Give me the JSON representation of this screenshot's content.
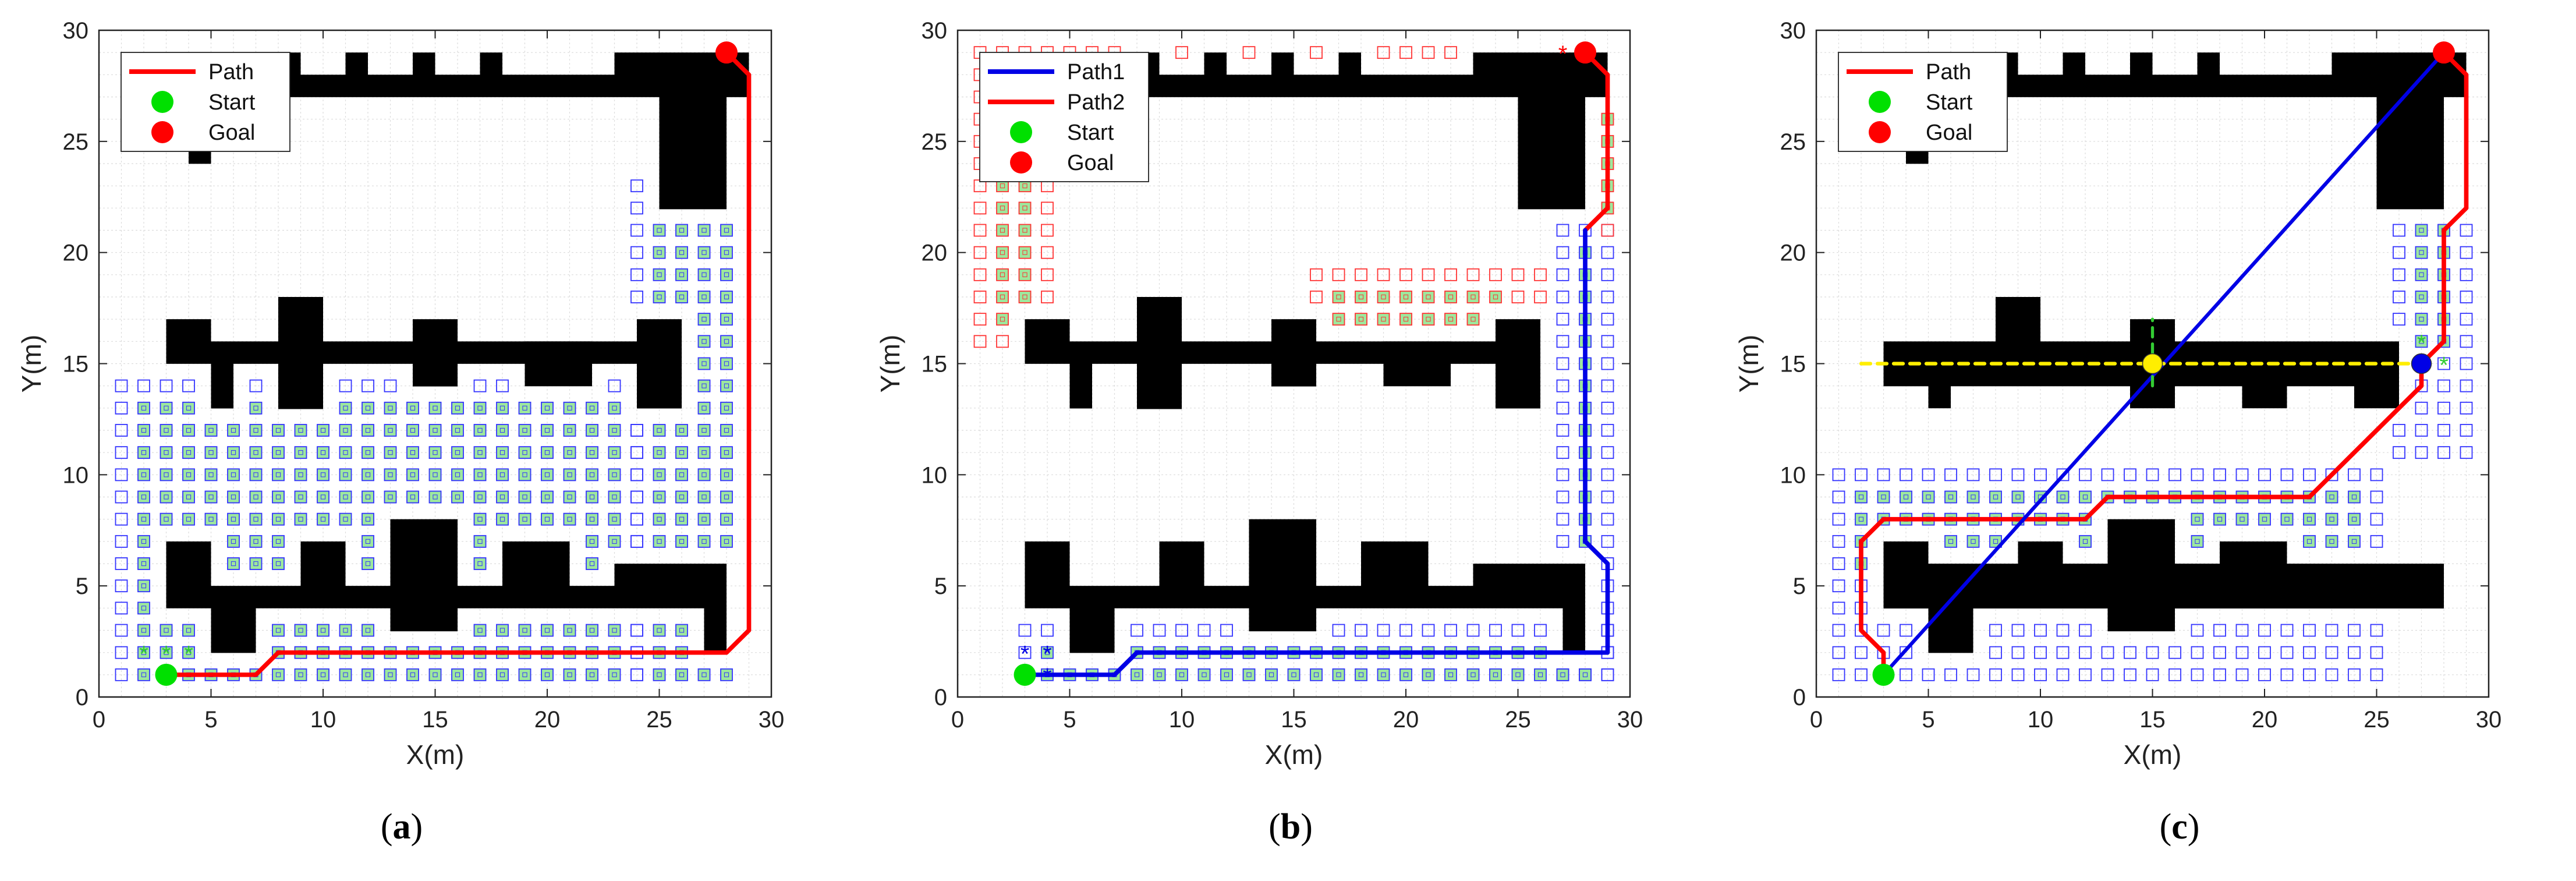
{
  "colors": {
    "obstacle": "#000000",
    "grid": "#dcdcdc",
    "path_red": "#ff0000",
    "path_blue": "#0000e6",
    "open_blue": "#3333ff",
    "open_red": "#ff3333",
    "closed_fill": "#9de89d",
    "start": "#00e000",
    "goal": "#ff0000",
    "yellow": "#ffee00"
  },
  "chart_data": [
    {
      "type": "scatter",
      "caption": "a",
      "xlabel": "X(m)",
      "ylabel": "Y(m)",
      "xlim": [
        0,
        30
      ],
      "ylim": [
        0,
        30
      ],
      "xticks": [
        "0",
        "5",
        "10",
        "15",
        "20",
        "25",
        "30"
      ],
      "yticks": [
        "0",
        "5",
        "10",
        "15",
        "20",
        "25",
        "30"
      ],
      "grid": true,
      "legend_position": "top-left",
      "legend": [
        {
          "label": "Path",
          "kind": "line",
          "color": "#ff0000"
        },
        {
          "label": "Start",
          "kind": "dot",
          "color": "#00e000"
        },
        {
          "label": "Goal",
          "kind": "dot",
          "color": "#ff0000"
        }
      ],
      "obstacles": [
        [
          7,
          27,
          29,
          28
        ],
        [
          8,
          28,
          9,
          29
        ],
        [
          11,
          28,
          12,
          29
        ],
        [
          14,
          28,
          15,
          29
        ],
        [
          17,
          28,
          18,
          29
        ],
        [
          23,
          28,
          29,
          29
        ],
        [
          25,
          22,
          28,
          28
        ],
        [
          4,
          24,
          5,
          25
        ],
        [
          3,
          15,
          26,
          16
        ],
        [
          3,
          16,
          5,
          17
        ],
        [
          8,
          13,
          10,
          18
        ],
        [
          14,
          14,
          16,
          17
        ],
        [
          19,
          14,
          22,
          16
        ],
        [
          24,
          16,
          26,
          17
        ],
        [
          24,
          13,
          26,
          15
        ],
        [
          5,
          13,
          6,
          15
        ],
        [
          3,
          4,
          28,
          5
        ],
        [
          3,
          5,
          5,
          7
        ],
        [
          9,
          5,
          11,
          7
        ],
        [
          13,
          3,
          16,
          8
        ],
        [
          18,
          5,
          21,
          7
        ],
        [
          23,
          5,
          28,
          6
        ],
        [
          5,
          2,
          7,
          4
        ],
        [
          27,
          2,
          28,
          4
        ]
      ],
      "open_markers": [
        {
          "color": "#3333ff",
          "x0": 24,
          "x1": 28,
          "y0": 0,
          "y1": 23,
          "fill": [
            25,
            28,
            1,
            21
          ]
        },
        {
          "color": "#3333ff",
          "x0": 1,
          "x1": 24,
          "y0": 0,
          "y1": 14,
          "fill": [
            2,
            23,
            1,
            13
          ]
        }
      ],
      "paths": [
        {
          "color": "#ff0000",
          "width": 3.2,
          "x": [
            3,
            7,
            8,
            28,
            29,
            29,
            28
          ],
          "y": [
            1,
            1,
            2,
            2,
            3,
            28,
            29
          ]
        }
      ],
      "stars": [
        {
          "color": "#33cc33",
          "x": [
            2,
            3,
            4
          ],
          "y": [
            2,
            2,
            2
          ]
        }
      ],
      "start": {
        "x": 3,
        "y": 1
      },
      "goal": {
        "x": 28,
        "y": 29
      }
    },
    {
      "type": "scatter",
      "caption": "b",
      "xlabel": "X(m)",
      "ylabel": "Y(m)",
      "xlim": [
        0,
        30
      ],
      "ylim": [
        0,
        30
      ],
      "xticks": [
        "0",
        "5",
        "10",
        "15",
        "20",
        "25",
        "30"
      ],
      "yticks": [
        "0",
        "5",
        "10",
        "15",
        "20",
        "25",
        "30"
      ],
      "grid": true,
      "legend_position": "top-left",
      "legend": [
        {
          "label": "Path1",
          "kind": "line",
          "color": "#0000e6"
        },
        {
          "label": "Path2",
          "kind": "line",
          "color": "#ff0000"
        },
        {
          "label": "Start",
          "kind": "dot",
          "color": "#00e000"
        },
        {
          "label": "Goal",
          "kind": "dot",
          "color": "#ff0000"
        }
      ],
      "obstacles": [
        [
          7,
          27,
          29,
          28
        ],
        [
          8,
          28,
          9,
          29
        ],
        [
          11,
          28,
          12,
          29
        ],
        [
          14,
          28,
          15,
          29
        ],
        [
          17,
          28,
          18,
          29
        ],
        [
          23,
          28,
          29,
          29
        ],
        [
          25,
          22,
          28,
          28
        ],
        [
          4,
          24,
          5,
          25
        ],
        [
          3,
          15,
          26,
          16
        ],
        [
          3,
          16,
          5,
          17
        ],
        [
          8,
          13,
          10,
          18
        ],
        [
          14,
          14,
          16,
          17
        ],
        [
          19,
          14,
          22,
          16
        ],
        [
          24,
          16,
          26,
          17
        ],
        [
          24,
          13,
          26,
          15
        ],
        [
          5,
          13,
          6,
          15
        ],
        [
          3,
          4,
          28,
          5
        ],
        [
          3,
          5,
          5,
          7
        ],
        [
          9,
          5,
          11,
          7
        ],
        [
          13,
          3,
          16,
          8
        ],
        [
          18,
          5,
          21,
          7
        ],
        [
          23,
          5,
          28,
          6
        ],
        [
          5,
          2,
          7,
          4
        ],
        [
          27,
          2,
          28,
          4
        ]
      ],
      "open_markers": [
        {
          "color": "#3333ff",
          "x0": 3,
          "x1": 29,
          "y0": 1,
          "y1": 3,
          "fill": [
            4,
            28,
            1,
            2
          ]
        },
        {
          "color": "#3333ff",
          "x0": 27,
          "x1": 29,
          "y0": 1,
          "y1": 21,
          "fill": [
            28,
            28,
            2,
            20
          ]
        },
        {
          "color": "#ff3333",
          "x0": 1,
          "x1": 29,
          "y0": 28,
          "y1": 29,
          "fill": [
            2,
            22,
            28,
            28
          ]
        },
        {
          "color": "#ff3333",
          "x0": 1,
          "x1": 4,
          "y0": 16,
          "y1": 27,
          "fill": [
            2,
            3,
            17,
            26
          ]
        },
        {
          "color": "#ff3333",
          "x0": 16,
          "x1": 26,
          "y0": 16,
          "y1": 19,
          "fill": [
            17,
            24,
            17,
            18
          ]
        },
        {
          "color": "#ff3333",
          "x0": 29,
          "x1": 29,
          "y0": 21,
          "y1": 29,
          "fill": [
            29,
            29,
            22,
            28
          ]
        }
      ],
      "paths": [
        {
          "color": "#ff0000",
          "width": 3.2,
          "x": [
            28,
            29,
            29,
            28,
            28
          ],
          "y": [
            21,
            22,
            28,
            29,
            29
          ]
        },
        {
          "color": "#0000e6",
          "width": 3.2,
          "x": [
            3,
            7,
            8,
            29,
            29,
            28,
            28
          ],
          "y": [
            1,
            1,
            2,
            2,
            6,
            7,
            21
          ]
        }
      ],
      "stars": [
        {
          "color": "#0000e6",
          "x": [
            3,
            4,
            3,
            4
          ],
          "y": [
            2,
            2,
            1,
            1
          ]
        },
        {
          "color": "#ff0000",
          "x": [
            27
          ],
          "y": [
            29
          ]
        }
      ],
      "start": {
        "x": 3,
        "y": 1
      },
      "goal": {
        "x": 28,
        "y": 29
      }
    },
    {
      "type": "scatter",
      "caption": "c",
      "xlabel": "X(m)",
      "ylabel": "Y(m)",
      "xlim": [
        0,
        30
      ],
      "ylim": [
        0,
        30
      ],
      "xticks": [
        "0",
        "5",
        "10",
        "15",
        "20",
        "25",
        "30"
      ],
      "yticks": [
        "0",
        "5",
        "10",
        "15",
        "20",
        "25",
        "30"
      ],
      "grid": true,
      "legend_position": "top-left",
      "legend": [
        {
          "label": "Path",
          "kind": "line",
          "color": "#ff0000"
        },
        {
          "label": "Start",
          "kind": "dot",
          "color": "#00e000"
        },
        {
          "label": "Goal",
          "kind": "dot",
          "color": "#ff0000"
        }
      ],
      "obstacles": [
        [
          7,
          27,
          29,
          28
        ],
        [
          8,
          28,
          9,
          29
        ],
        [
          11,
          28,
          12,
          29
        ],
        [
          14,
          28,
          15,
          29
        ],
        [
          17,
          28,
          18,
          29
        ],
        [
          23,
          28,
          29,
          29
        ],
        [
          25,
          22,
          28,
          28
        ],
        [
          4,
          24,
          5,
          25
        ],
        [
          3,
          14,
          26,
          16
        ],
        [
          5,
          13,
          6,
          14
        ],
        [
          8,
          16,
          10,
          18
        ],
        [
          14,
          16,
          16,
          17
        ],
        [
          14,
          13,
          16,
          14
        ],
        [
          19,
          13,
          21,
          14
        ],
        [
          24,
          13,
          26,
          14
        ],
        [
          3,
          4,
          28,
          6
        ],
        [
          3,
          6,
          5,
          7
        ],
        [
          9,
          6,
          11,
          7
        ],
        [
          13,
          3,
          16,
          8
        ],
        [
          18,
          6,
          21,
          7
        ],
        [
          23,
          5,
          28,
          6
        ],
        [
          5,
          2,
          7,
          4
        ]
      ],
      "open_markers": [
        {
          "color": "#3333ff",
          "x0": 1,
          "x1": 25,
          "y0": 1,
          "y1": 10,
          "fill": [
            2,
            24,
            6,
            9
          ]
        },
        {
          "color": "#3333ff",
          "x0": 26,
          "x1": 29,
          "y0": 11,
          "y1": 21,
          "fill": [
            27,
            28,
            16,
            21
          ]
        }
      ],
      "paths": [
        {
          "color": "#ff0000",
          "width": 3.2,
          "x": [
            3,
            3,
            2,
            2,
            3,
            12,
            13,
            22,
            23,
            26,
            27,
            27,
            28,
            28,
            29,
            29,
            28
          ],
          "y": [
            1,
            2,
            3,
            7,
            8,
            8,
            9,
            9,
            10,
            13,
            14,
            15,
            16,
            21,
            22,
            28,
            29
          ]
        },
        {
          "color": "#0000e6",
          "width": 2.6,
          "x": [
            3,
            28
          ],
          "y": [
            1,
            29
          ]
        },
        {
          "color": "#ffee00",
          "width": 2.6,
          "dash": true,
          "x": [
            2,
            27
          ],
          "y": [
            15,
            15
          ]
        },
        {
          "color": "#33cc33",
          "width": 2.2,
          "dash": true,
          "x": [
            15,
            15
          ],
          "y": [
            14,
            17
          ]
        }
      ],
      "stars": [
        {
          "color": "#33cc33",
          "x": [
            27,
            28
          ],
          "y": [
            16,
            15
          ]
        }
      ],
      "extra_points": [
        {
          "x": 15,
          "y": 15,
          "color": "#ffee00"
        },
        {
          "x": 27,
          "y": 15,
          "color": "#0000e6"
        }
      ],
      "start": {
        "x": 3,
        "y": 1
      },
      "goal": {
        "x": 28,
        "y": 29
      }
    }
  ]
}
